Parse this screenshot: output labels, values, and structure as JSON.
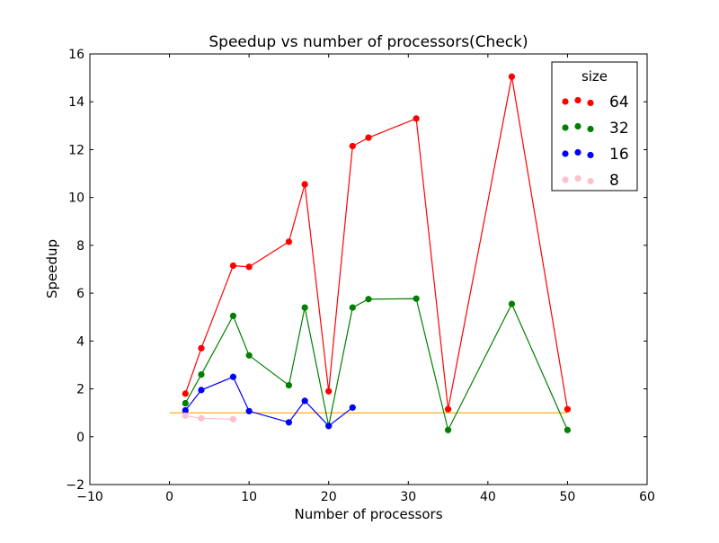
{
  "chart_data": {
    "type": "line",
    "title": "Speedup vs number of processors(Check)",
    "xlabel": "Number of processors",
    "ylabel": "Speedup",
    "xlim": [
      -10,
      60
    ],
    "ylim": [
      -2,
      16
    ],
    "x_ticks": [
      -10,
      0,
      10,
      20,
      30,
      40,
      50,
      60
    ],
    "y_ticks": [
      -2,
      0,
      2,
      4,
      6,
      8,
      10,
      12,
      14,
      16
    ],
    "x_tick_labels": [
      "−10",
      "0",
      "10",
      "20",
      "30",
      "40",
      "50",
      "60"
    ],
    "y_tick_labels": [
      "−2",
      "0",
      "2",
      "4",
      "6",
      "8",
      "10",
      "12",
      "14",
      "16"
    ],
    "grid": false,
    "legend": {
      "title": "size",
      "placement": "top-right"
    },
    "series": [
      {
        "name": "64",
        "color": "#ff0000",
        "x": [
          2,
          4,
          8,
          10,
          15,
          17,
          20,
          23,
          25,
          31,
          35,
          43,
          50
        ],
        "y": [
          1.8,
          3.7,
          7.15,
          7.1,
          8.15,
          10.55,
          1.9,
          12.15,
          12.5,
          13.3,
          1.15,
          15.05,
          1.15
        ]
      },
      {
        "name": "32",
        "color": "#008000",
        "x": [
          2,
          4,
          8,
          10,
          15,
          17,
          20,
          23,
          25,
          31,
          35,
          43,
          50
        ],
        "y": [
          1.4,
          2.6,
          5.05,
          3.4,
          2.15,
          5.4,
          0.45,
          5.4,
          5.75,
          5.77,
          0.28,
          5.55,
          0.28
        ]
      },
      {
        "name": "16",
        "color": "#0000ff",
        "x": [
          2,
          4,
          8,
          10,
          15,
          17,
          20,
          23
        ],
        "y": [
          1.1,
          1.95,
          2.5,
          1.07,
          0.6,
          1.5,
          0.45,
          1.22
        ]
      },
      {
        "name": "8",
        "color": "#ffc0cb",
        "x": [
          2,
          4,
          8
        ],
        "y": [
          0.88,
          0.77,
          0.73
        ]
      }
    ],
    "reference_line": {
      "color": "#ffa500",
      "x": [
        0,
        50
      ],
      "y": [
        1,
        1
      ]
    }
  }
}
